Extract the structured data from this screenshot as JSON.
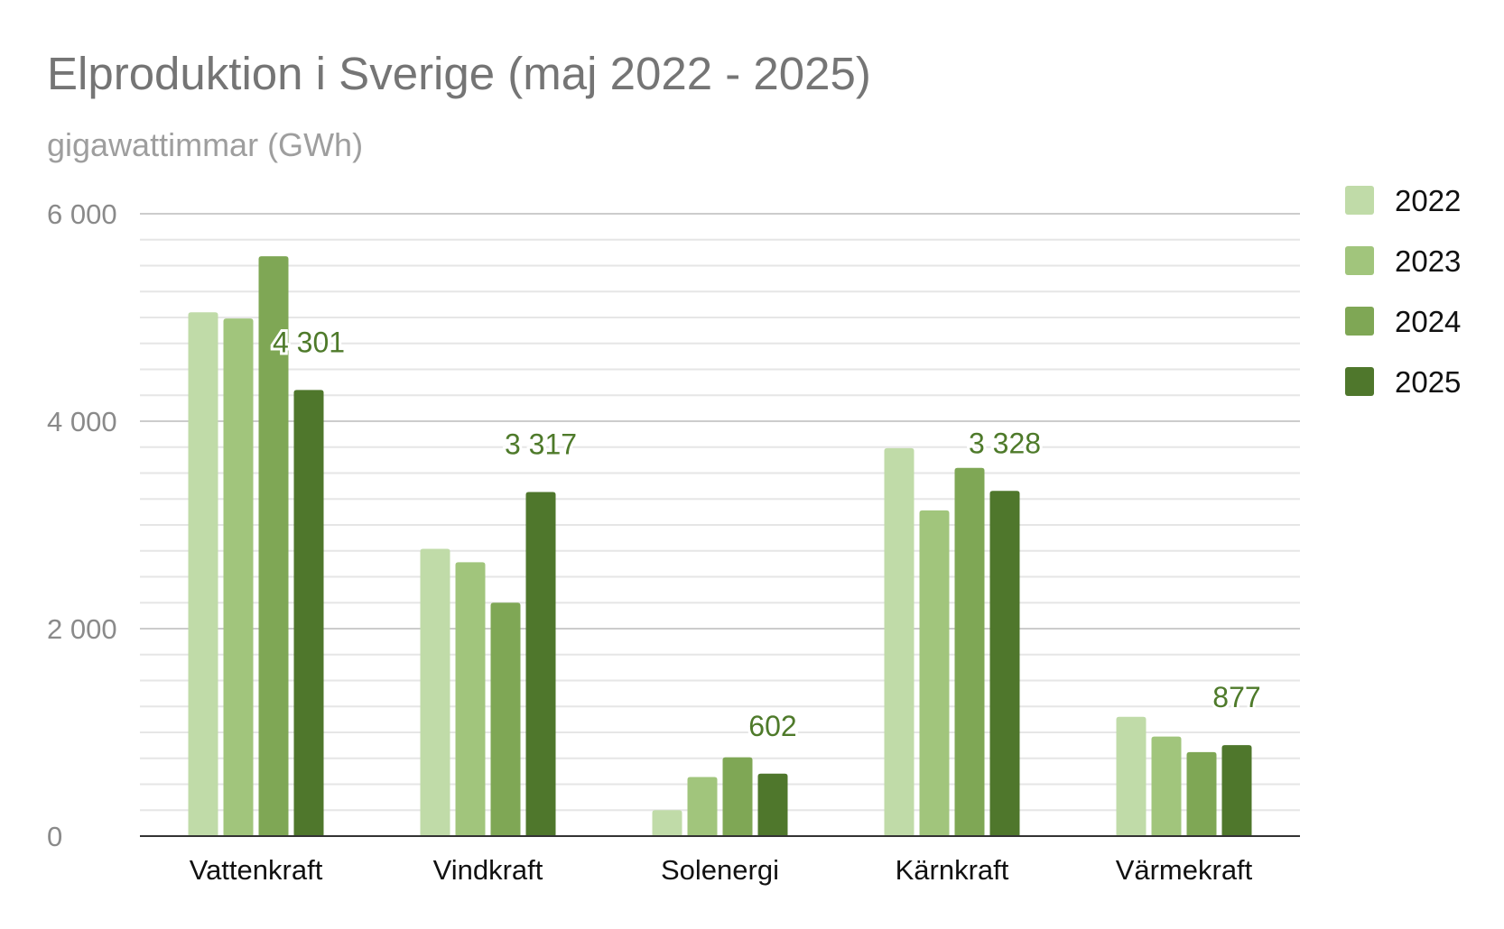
{
  "chart_data": {
    "type": "bar",
    "title": "Elproduktion i Sverige (maj 2022 - 2025)",
    "subtitle": "gigawattimmar (GWh)",
    "xlabel": "",
    "ylabel": "",
    "ylim": [
      0,
      6000
    ],
    "y_ticks": [
      0,
      2000,
      4000,
      6000
    ],
    "y_tick_labels": [
      "0",
      "2 000",
      "4 000",
      "6 000"
    ],
    "minor_gridlines_per_major": 8,
    "grid": true,
    "legend_position": "right",
    "categories": [
      "Vattenkraft",
      "Vindkraft",
      "Solenergi",
      "Kärnkraft",
      "Värmekraft"
    ],
    "series": [
      {
        "name": "2022",
        "color": "#c0dba8",
        "values": [
          5050,
          2770,
          250,
          3740,
          1150
        ]
      },
      {
        "name": "2023",
        "color": "#a1c57c",
        "values": [
          4990,
          2640,
          570,
          3140,
          960
        ]
      },
      {
        "name": "2024",
        "color": "#7fa755",
        "values": [
          5590,
          2250,
          760,
          3550,
          810
        ]
      },
      {
        "name": "2025",
        "color": "#4f772c",
        "values": [
          4301,
          3317,
          602,
          3328,
          877
        ]
      }
    ],
    "data_labels": {
      "series": "2025",
      "texts": [
        "4 301",
        "3 317",
        "602",
        "3 328",
        "877"
      ]
    }
  }
}
